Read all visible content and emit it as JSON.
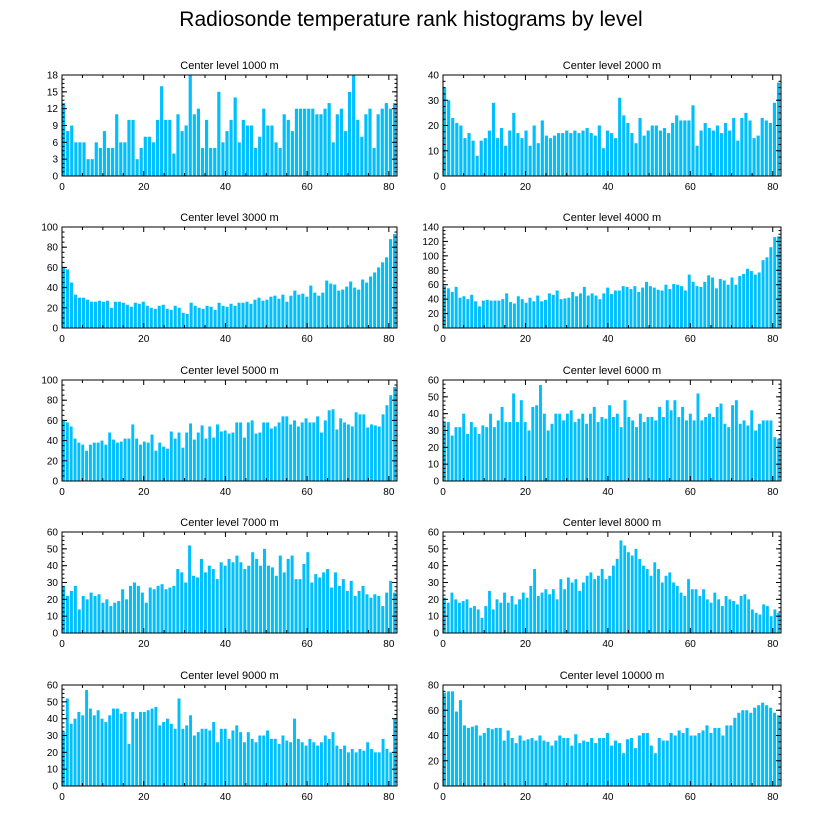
{
  "title": "Radiosonde temperature rank histograms by level",
  "colors": {
    "bar": "#00BFFF",
    "bar_edge": "#ffffff",
    "axis": "#000000"
  },
  "chart_data": [
    {
      "type": "bar",
      "title": "Center level 1000 m",
      "xlim": [
        0,
        82
      ],
      "ylim": [
        0,
        18
      ],
      "xticks": [
        0,
        20,
        40,
        60,
        80
      ],
      "yticks": [
        0,
        3,
        6,
        9,
        12,
        15,
        18
      ],
      "values": [
        13,
        8,
        9,
        6,
        6,
        6,
        3,
        3,
        6,
        5,
        8,
        5,
        5,
        11,
        6,
        6,
        10,
        10,
        3,
        5,
        7,
        7,
        6,
        10,
        16,
        10,
        10,
        4,
        11,
        8,
        9,
        18,
        11,
        12,
        5,
        10,
        5,
        5,
        15,
        6,
        8,
        10,
        14,
        6,
        10,
        9,
        9,
        5,
        7,
        12,
        9,
        9,
        6,
        5,
        11,
        10,
        8,
        12,
        12,
        12,
        12,
        12,
        11,
        11,
        12,
        13,
        6,
        11,
        12,
        8,
        15,
        18,
        10,
        7,
        11,
        12,
        5,
        11,
        12,
        13,
        12,
        13
      ]
    },
    {
      "type": "bar",
      "title": "Center level 2000 m",
      "xlim": [
        0,
        82
      ],
      "ylim": [
        0,
        40
      ],
      "xticks": [
        0,
        20,
        40,
        60,
        80
      ],
      "yticks": [
        0,
        10,
        20,
        30,
        40
      ],
      "values": [
        35,
        30,
        23,
        21,
        20,
        15,
        17,
        14,
        8,
        14,
        15,
        18,
        29,
        15,
        19,
        12,
        18,
        25,
        17,
        15,
        18,
        12,
        20,
        13,
        22,
        16,
        15,
        16,
        17,
        17,
        18,
        17,
        18,
        17,
        18,
        19,
        17,
        16,
        20,
        11,
        18,
        17,
        15,
        31,
        24,
        21,
        17,
        13,
        23,
        16,
        18,
        20,
        20,
        18,
        19,
        17,
        21,
        24,
        22,
        22,
        22,
        28,
        12,
        18,
        21,
        19,
        18,
        20,
        17,
        21,
        18,
        23,
        14,
        23,
        25,
        22,
        15,
        16,
        23,
        22,
        21,
        29,
        37
      ]
    },
    {
      "type": "bar",
      "title": "Center level 3000 m",
      "xlim": [
        0,
        82
      ],
      "ylim": [
        0,
        100
      ],
      "xticks": [
        0,
        20,
        40,
        60,
        80
      ],
      "yticks": [
        0,
        20,
        40,
        60,
        80,
        100
      ],
      "values": [
        60,
        58,
        45,
        33,
        30,
        30,
        28,
        26,
        26,
        27,
        26,
        27,
        20,
        26,
        26,
        25,
        23,
        21,
        25,
        24,
        26,
        22,
        20,
        19,
        22,
        23,
        19,
        18,
        22,
        20,
        15,
        14,
        25,
        22,
        20,
        19,
        22,
        21,
        18,
        25,
        22,
        21,
        24,
        22,
        25,
        25,
        26,
        24,
        28,
        30,
        27,
        28,
        31,
        32,
        29,
        33,
        26,
        32,
        37,
        33,
        34,
        31,
        42,
        35,
        32,
        35,
        47,
        44,
        43,
        37,
        38,
        41,
        46,
        40,
        38,
        48,
        45,
        51,
        55,
        60,
        65,
        70,
        88,
        93
      ]
    },
    {
      "type": "bar",
      "title": "Center level 4000 m",
      "xlim": [
        0,
        82
      ],
      "ylim": [
        0,
        140
      ],
      "xticks": [
        0,
        20,
        40,
        60,
        80
      ],
      "yticks": [
        0,
        20,
        40,
        60,
        80,
        100,
        120,
        140
      ],
      "values": [
        58,
        55,
        50,
        57,
        42,
        44,
        40,
        46,
        37,
        30,
        38,
        39,
        38,
        38,
        38,
        40,
        48,
        36,
        34,
        44,
        40,
        35,
        42,
        37,
        45,
        37,
        39,
        48,
        46,
        52,
        40,
        41,
        42,
        50,
        44,
        48,
        57,
        45,
        48,
        45,
        40,
        48,
        56,
        47,
        52,
        52,
        58,
        57,
        54,
        58,
        50,
        56,
        64,
        58,
        56,
        53,
        52,
        60,
        54,
        61,
        60,
        58,
        52,
        74,
        64,
        58,
        57,
        64,
        73,
        70,
        55,
        68,
        66,
        60,
        70,
        60,
        72,
        75,
        82,
        79,
        74,
        77,
        94,
        98,
        112,
        126,
        127
      ]
    },
    {
      "type": "bar",
      "title": "Center level 5000 m",
      "xlim": [
        0,
        82
      ],
      "ylim": [
        0,
        100
      ],
      "xticks": [
        0,
        20,
        40,
        60,
        80
      ],
      "yticks": [
        0,
        20,
        40,
        60,
        80,
        100
      ],
      "values": [
        60,
        58,
        54,
        42,
        38,
        36,
        30,
        36,
        38,
        38,
        40,
        36,
        48,
        41,
        38,
        39,
        42,
        42,
        56,
        42,
        36,
        39,
        38,
        46,
        30,
        38,
        34,
        32,
        49,
        42,
        48,
        33,
        48,
        57,
        41,
        48,
        55,
        42,
        54,
        43,
        56,
        49,
        50,
        47,
        48,
        58,
        58,
        43,
        58,
        60,
        47,
        48,
        58,
        58,
        52,
        54,
        58,
        64,
        64,
        56,
        60,
        54,
        58,
        62,
        58,
        58,
        64,
        48,
        60,
        70,
        71,
        51,
        62,
        58,
        56,
        54,
        68,
        66,
        66,
        53,
        56,
        55,
        54,
        66,
        75,
        85,
        93
      ]
    },
    {
      "type": "bar",
      "title": "Center level 6000 m",
      "xlim": [
        0,
        82
      ],
      "ylim": [
        0,
        60
      ],
      "xticks": [
        0,
        20,
        40,
        60,
        80
      ],
      "yticks": [
        0,
        10,
        20,
        30,
        40,
        50,
        60
      ],
      "values": [
        35,
        35,
        27,
        32,
        32,
        40,
        28,
        35,
        32,
        28,
        33,
        32,
        40,
        32,
        36,
        44,
        35,
        35,
        52,
        35,
        48,
        35,
        30,
        44,
        45,
        57,
        40,
        30,
        34,
        40,
        40,
        36,
        40,
        42,
        35,
        37,
        40,
        34,
        40,
        44,
        35,
        38,
        37,
        45,
        38,
        40,
        32,
        48,
        38,
        36,
        32,
        40,
        35,
        38,
        38,
        36,
        44,
        38,
        48,
        42,
        48,
        38,
        44,
        36,
        40,
        36,
        52,
        36,
        38,
        40,
        38,
        44,
        46,
        34,
        32,
        45,
        48,
        34,
        36,
        33,
        42,
        30,
        34,
        36,
        36,
        36,
        26,
        25
      ]
    },
    {
      "type": "bar",
      "title": "Center level 7000 m",
      "xlim": [
        0,
        82
      ],
      "ylim": [
        0,
        60
      ],
      "xticks": [
        0,
        20,
        40,
        60,
        80
      ],
      "yticks": [
        0,
        10,
        20,
        30,
        40,
        50,
        60
      ],
      "values": [
        28,
        22,
        25,
        28,
        14,
        22,
        20,
        24,
        22,
        23,
        18,
        20,
        16,
        18,
        19,
        26,
        20,
        28,
        30,
        28,
        24,
        18,
        27,
        26,
        28,
        29,
        26,
        27,
        28,
        38,
        36,
        30,
        52,
        34,
        33,
        44,
        36,
        40,
        38,
        32,
        42,
        40,
        44,
        42,
        46,
        42,
        38,
        40,
        48,
        44,
        40,
        50,
        40,
        39,
        34,
        46,
        36,
        44,
        46,
        32,
        32,
        41,
        48,
        30,
        35,
        33,
        36,
        38,
        27,
        36,
        28,
        32,
        25,
        31,
        22,
        25,
        28,
        23,
        21,
        23,
        22,
        16,
        24,
        31,
        24
      ]
    },
    {
      "type": "bar",
      "title": "Center level 8000 m",
      "xlim": [
        0,
        82
      ],
      "ylim": [
        0,
        60
      ],
      "xticks": [
        0,
        20,
        40,
        60,
        80
      ],
      "yticks": [
        0,
        10,
        20,
        30,
        40,
        50,
        60
      ],
      "values": [
        21,
        18,
        24,
        20,
        18,
        19,
        20,
        15,
        16,
        14,
        9,
        16,
        25,
        14,
        20,
        18,
        24,
        18,
        22,
        17,
        20,
        24,
        21,
        28,
        38,
        22,
        24,
        26,
        23,
        26,
        20,
        32,
        26,
        33,
        30,
        32,
        25,
        30,
        34,
        36,
        32,
        34,
        38,
        32,
        34,
        40,
        44,
        55,
        52,
        48,
        46,
        50,
        44,
        40,
        38,
        34,
        42,
        38,
        30,
        34,
        36,
        30,
        28,
        24,
        22,
        32,
        26,
        26,
        22,
        26,
        20,
        18,
        24,
        20,
        16,
        22,
        20,
        19,
        17,
        22,
        23,
        20,
        14,
        12,
        11,
        17,
        16,
        10,
        14,
        12
      ]
    },
    {
      "type": "bar",
      "title": "Center level 9000 m",
      "xlim": [
        0,
        82
      ],
      "ylim": [
        0,
        60
      ],
      "xticks": [
        0,
        20,
        40,
        60,
        80
      ],
      "yticks": [
        0,
        10,
        20,
        30,
        40,
        50,
        60
      ],
      "values": [
        32,
        52,
        37,
        40,
        44,
        42,
        57,
        46,
        42,
        45,
        40,
        38,
        42,
        46,
        46,
        43,
        44,
        25,
        44,
        40,
        44,
        44,
        45,
        46,
        47,
        36,
        38,
        40,
        37,
        34,
        52,
        34,
        36,
        42,
        30,
        32,
        34,
        34,
        33,
        38,
        26,
        34,
        34,
        28,
        33,
        36,
        32,
        26,
        32,
        28,
        26,
        30,
        30,
        33,
        28,
        28,
        25,
        30,
        27,
        26,
        40,
        28,
        26,
        24,
        28,
        26,
        24,
        26,
        30,
        28,
        32,
        24,
        22,
        24,
        20,
        22,
        20,
        22,
        21,
        26,
        22,
        20,
        20,
        28,
        22,
        20,
        40
      ]
    },
    {
      "type": "bar",
      "title": "Center level 10000 m",
      "xlim": [
        0,
        82
      ],
      "ylim": [
        0,
        80
      ],
      "xticks": [
        0,
        20,
        40,
        60,
        80
      ],
      "yticks": [
        0,
        20,
        40,
        60,
        80
      ],
      "values": [
        74,
        75,
        75,
        59,
        68,
        48,
        46,
        47,
        48,
        40,
        42,
        46,
        45,
        46,
        46,
        36,
        44,
        38,
        34,
        40,
        36,
        37,
        38,
        36,
        40,
        36,
        35,
        32,
        36,
        40,
        38,
        38,
        32,
        41,
        34,
        36,
        35,
        38,
        34,
        38,
        38,
        42,
        32,
        36,
        34,
        26,
        37,
        38,
        30,
        40,
        42,
        42,
        32,
        26,
        38,
        36,
        36,
        42,
        40,
        44,
        42,
        46,
        40,
        40,
        42,
        44,
        48,
        42,
        46,
        46,
        40,
        48,
        48,
        54,
        58,
        60,
        60,
        58,
        62,
        64,
        66,
        64,
        62,
        58,
        56
      ]
    }
  ]
}
